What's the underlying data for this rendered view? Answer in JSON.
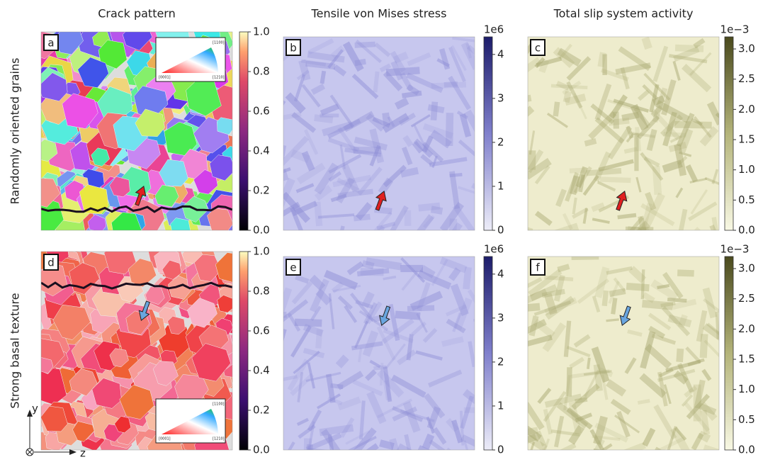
{
  "columns": [
    "Crack pattern",
    "Tensile von Mises stress",
    "Total slip system activity"
  ],
  "rows": [
    "Randomly oriented grains",
    "Strong basal texture"
  ],
  "panels": [
    {
      "label": "a"
    },
    {
      "label": "b"
    },
    {
      "label": "c"
    },
    {
      "label": "d"
    },
    {
      "label": "e"
    },
    {
      "label": "f"
    }
  ],
  "inset_labels": [
    "[1100]",
    "[0001]",
    "[1210]"
  ],
  "axes_indicator": [
    "y",
    "z"
  ],
  "colorbars": [
    {
      "lim": [
        0,
        1
      ],
      "ticks": [
        {
          "value": 0,
          "label": "0.0"
        },
        {
          "value": 0.2,
          "label": "0.2"
        },
        {
          "value": 0.4,
          "label": "0.4"
        },
        {
          "value": 0.6,
          "label": "0.6"
        },
        {
          "value": 0.8,
          "label": "0.8"
        },
        {
          "value": 1,
          "label": "1.0"
        }
      ]
    },
    {
      "lim": [
        0,
        4.4
      ],
      "offset": "1e6",
      "ticks": [
        0,
        1,
        2,
        3,
        4
      ]
    },
    {
      "lim": [
        0,
        3.2
      ],
      "offset": "1e−3",
      "ticks": [
        {
          "value": 0,
          "label": "0.0"
        },
        {
          "value": 0.5,
          "label": "0.5"
        },
        {
          "value": 1,
          "label": "1.0"
        },
        {
          "value": 1.5,
          "label": "1.5"
        },
        {
          "value": 2,
          "label": "2.0"
        },
        {
          "value": 2.5,
          "label": "2.5"
        },
        {
          "value": 3,
          "label": "3.0"
        }
      ]
    }
  ]
}
